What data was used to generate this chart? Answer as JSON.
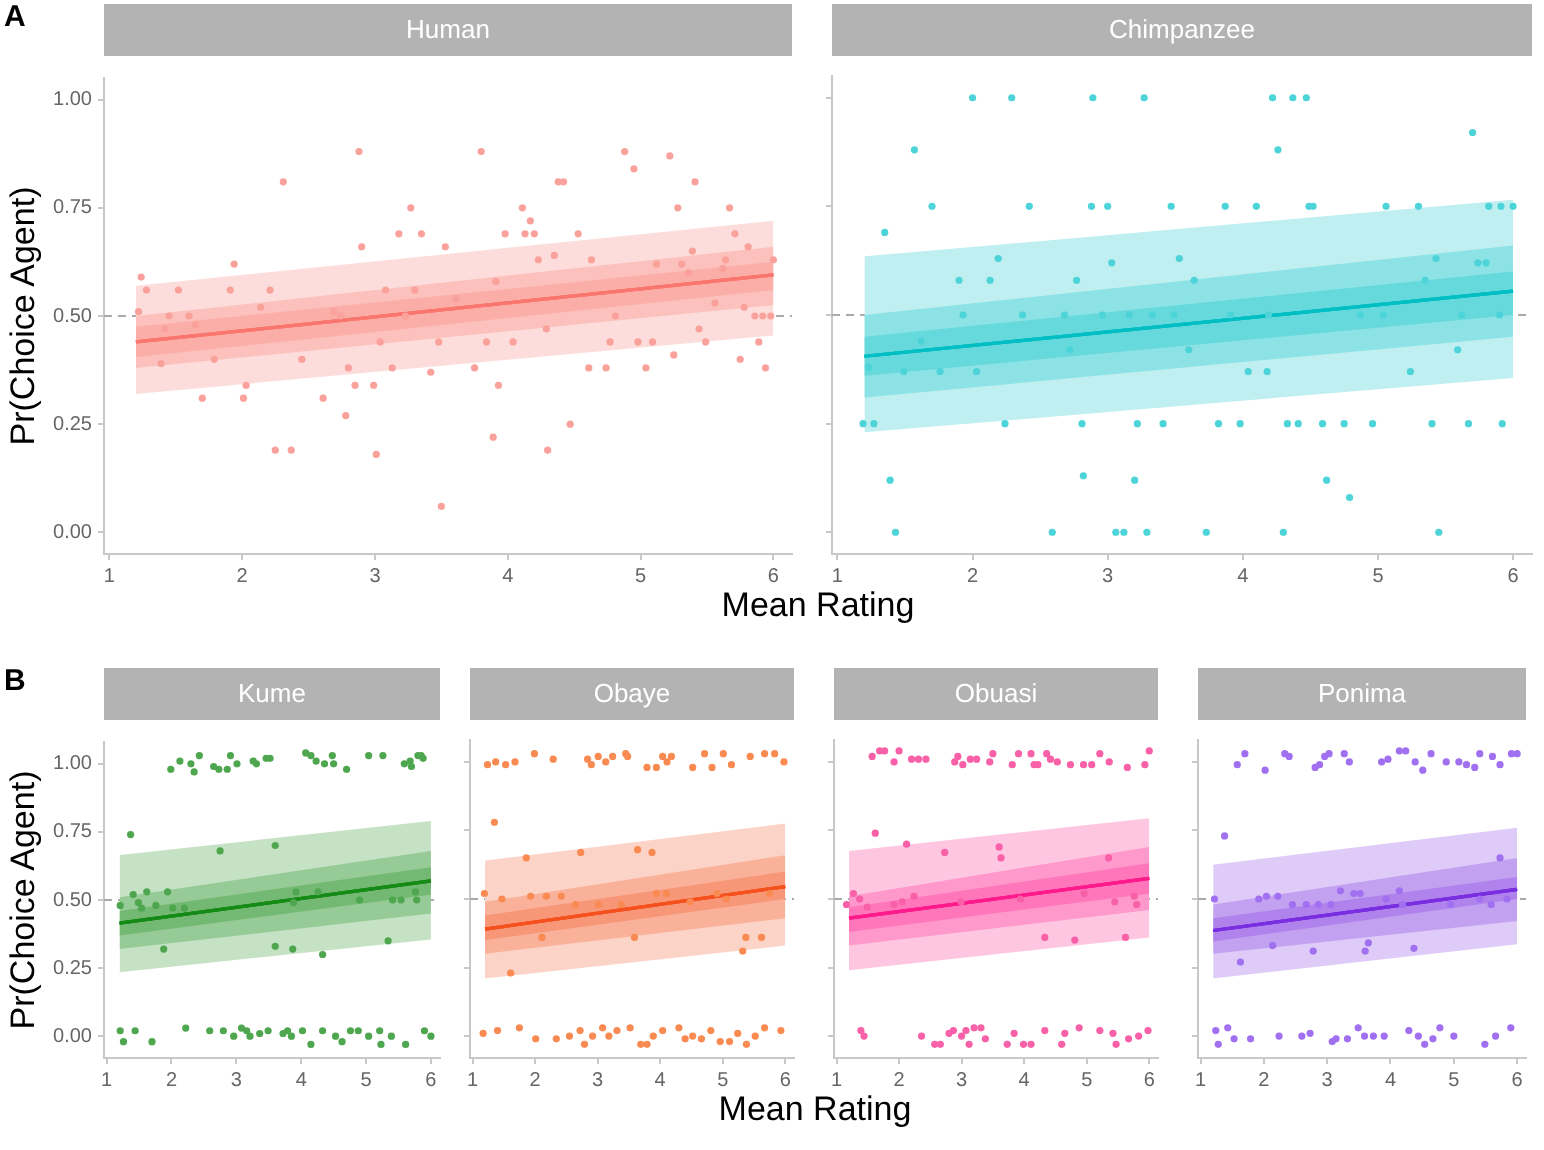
{
  "chart_data": [
    {
      "type": "scatter",
      "title": "Human",
      "xlabel": "Mean Rating",
      "ylabel": "Pr(Choice Agent)",
      "annotations": [
        "A"
      ],
      "xlim": [
        0.96,
        6.14
      ],
      "ylim": [
        -0.05,
        1.05
      ],
      "xticks": [
        1,
        2,
        3,
        4,
        5,
        6
      ],
      "yticks": [
        {
          "value": 0,
          "label": "0.00"
        },
        {
          "value": 0.25,
          "label": "0.25"
        },
        {
          "value": 0.5,
          "label": "0.50"
        },
        {
          "value": 0.75,
          "label": "0.75"
        },
        {
          "value": 1,
          "label": "1.00"
        }
      ],
      "grid": false,
      "ref_lines": [
        {
          "axis": "y",
          "value": 0.5,
          "color": "#aaaaaa",
          "line_style": "dashed"
        }
      ],
      "series": [
        {
          "type": "scatter",
          "color": "#f9a19a",
          "x": [
            1.22,
            1.24,
            1.28,
            1.39,
            1.42,
            1.45,
            1.52,
            1.6,
            1.65,
            1.7,
            1.79,
            1.91,
            1.94,
            2.01,
            2.03,
            2.14,
            2.21,
            2.25,
            2.31,
            2.37,
            2.45,
            2.61,
            2.69,
            2.74,
            2.78,
            2.8,
            2.85,
            2.88,
            2.9,
            2.99,
            3.01,
            3.04,
            3.08,
            3.13,
            3.18,
            3.23,
            3.27,
            3.3,
            3.35,
            3.42,
            3.48,
            3.5,
            3.53,
            3.61,
            3.75,
            3.8,
            3.84,
            3.89,
            3.91,
            3.93,
            3.98,
            4.04,
            4.11,
            4.13,
            4.17,
            4.2,
            4.23,
            4.29,
            4.3,
            4.35,
            4.38,
            4.42,
            4.47,
            4.53,
            4.61,
            4.63,
            4.74,
            4.77,
            4.81,
            4.88,
            4.95,
            4.98,
            5.04,
            5.09,
            5.12,
            5.22,
            5.25,
            5.28,
            5.31,
            5.36,
            5.39,
            5.41,
            5.44,
            5.49,
            5.56,
            5.62,
            5.64,
            5.67,
            5.71,
            5.75,
            5.78,
            5.81,
            5.86,
            5.89,
            5.92,
            5.94,
            5.98,
            6.0
          ],
          "values": [
            0.51,
            0.59,
            0.56,
            0.39,
            0.47,
            0.5,
            0.56,
            0.5,
            0.48,
            0.31,
            0.4,
            0.56,
            0.62,
            0.31,
            0.34,
            0.52,
            0.56,
            0.19,
            0.81,
            0.19,
            0.4,
            0.31,
            0.51,
            0.5,
            0.27,
            0.38,
            0.34,
            0.88,
            0.66,
            0.34,
            0.18,
            0.44,
            0.56,
            0.38,
            0.69,
            0.5,
            0.75,
            0.56,
            0.69,
            0.37,
            0.44,
            0.06,
            0.66,
            0.54,
            0.38,
            0.88,
            0.44,
            0.22,
            0.58,
            0.34,
            0.69,
            0.44,
            0.75,
            0.69,
            0.72,
            0.69,
            0.63,
            0.47,
            0.19,
            0.64,
            0.81,
            0.81,
            0.25,
            0.69,
            0.38,
            0.63,
            0.38,
            0.44,
            0.5,
            0.88,
            0.84,
            0.44,
            0.38,
            0.44,
            0.62,
            0.87,
            0.41,
            0.75,
            0.62,
            0.6,
            0.65,
            0.81,
            0.47,
            0.44,
            0.53,
            0.61,
            0.63,
            0.75,
            0.69,
            0.4,
            0.52,
            0.66,
            0.5,
            0.44,
            0.5,
            0.38,
            0.5,
            0.63
          ]
        },
        {
          "type": "line",
          "color": "#f8766d",
          "x": [
            1.2,
            6
          ],
          "values": [
            0.44,
            0.595
          ],
          "lower": [
            0.32,
            0.455
          ],
          "upper": [
            0.57,
            0.72
          ]
        },
        {
          "type": "line",
          "color": "#f8766d",
          "x": [
            1.2,
            6
          ],
          "values": [
            0.44,
            0.595
          ],
          "lower": [
            0.38,
            0.525
          ],
          "upper": [
            0.5,
            0.66
          ]
        },
        {
          "type": "line",
          "color": "#f8766d",
          "x": [
            1.2,
            6
          ],
          "values": [
            0.44,
            0.595
          ],
          "lower": [
            0.405,
            0.56
          ],
          "upper": [
            0.475,
            0.625
          ]
        }
      ]
    },
    {
      "type": "scatter",
      "title": "Chimpanzee",
      "xlim": [
        0.96,
        6.14
      ],
      "ylim": [
        -0.05,
        1.05
      ],
      "xticks": [
        1,
        2,
        3,
        4,
        5,
        6
      ],
      "yticks": [
        0,
        0.25,
        0.5,
        0.75,
        1
      ],
      "tick_labels": "x",
      "grid": false,
      "ref_lines": [
        {
          "axis": "y",
          "value": 0.5,
          "color": "#aaaaaa",
          "line_style": "dashed"
        }
      ],
      "series": [
        {
          "type": "scatter",
          "color": "#4dd4d8",
          "x": [
            1.19,
            1.27,
            1.23,
            1.35,
            1.39,
            1.43,
            1.49,
            1.57,
            1.62,
            1.7,
            1.76,
            1.9,
            1.93,
            2.0,
            2.03,
            2.13,
            2.19,
            2.24,
            2.29,
            2.37,
            2.42,
            2.59,
            2.68,
            2.72,
            2.77,
            2.81,
            2.82,
            2.88,
            2.89,
            2.96,
            3.0,
            3.03,
            3.06,
            3.12,
            3.16,
            3.2,
            3.22,
            3.27,
            3.29,
            3.33,
            3.41,
            3.47,
            3.49,
            3.53,
            3.6,
            3.64,
            3.73,
            3.82,
            3.87,
            3.91,
            3.98,
            4.04,
            4.1,
            4.18,
            4.19,
            4.22,
            4.26,
            4.3,
            4.33,
            4.37,
            4.41,
            4.47,
            4.49,
            4.52,
            4.59,
            4.62,
            4.75,
            4.79,
            4.87,
            4.96,
            5.04,
            5.06,
            5.24,
            5.3,
            5.35,
            5.4,
            5.43,
            5.45,
            5.59,
            5.62,
            5.67,
            5.7,
            5.74,
            5.8,
            5.82,
            5.9,
            5.91,
            5.92,
            6.0
          ],
          "values": [
            0.25,
            0.25,
            0.38,
            0.69,
            0.12,
            0,
            0.37,
            0.88,
            0.44,
            0.75,
            0.37,
            0.58,
            0.5,
            1,
            0.37,
            0.58,
            0.63,
            0.25,
            1,
            0.5,
            0.75,
            0,
            0.5,
            0.42,
            0.58,
            0.25,
            0.13,
            0.75,
            1,
            0.5,
            0.75,
            0.62,
            0,
            0,
            0.5,
            0.12,
            0.25,
            1,
            0,
            0.5,
            0.25,
            0.75,
            0.5,
            0.63,
            0.42,
            0.58,
            0,
            0.25,
            0.75,
            0.5,
            0.25,
            0.37,
            0.75,
            0.37,
            0.5,
            1,
            0.88,
            0,
            0.25,
            1,
            0.25,
            1,
            0.75,
            0.75,
            0.25,
            0.12,
            0.25,
            0.08,
            0.5,
            0.25,
            0.5,
            0.75,
            0.37,
            0.75,
            0.58,
            0.25,
            0.63,
            0,
            0.42,
            0.5,
            0.25,
            0.92,
            0.62,
            0.62,
            0.75,
            0.5,
            0.75,
            0.25,
            0.75
          ]
        },
        {
          "type": "line",
          "color": "#00bfc4",
          "x": [
            1.2,
            6
          ],
          "values": [
            0.405,
            0.555
          ],
          "lower": [
            0.23,
            0.355
          ],
          "upper": [
            0.635,
            0.765
          ]
        },
        {
          "type": "line",
          "color": "#00bfc4",
          "x": [
            1.2,
            6
          ],
          "values": [
            0.405,
            0.555
          ],
          "lower": [
            0.31,
            0.45
          ],
          "upper": [
            0.5,
            0.66
          ]
        },
        {
          "type": "line",
          "color": "#00bfc4",
          "x": [
            1.2,
            6
          ],
          "values": [
            0.405,
            0.555
          ],
          "lower": [
            0.36,
            0.5
          ],
          "upper": [
            0.45,
            0.6
          ]
        }
      ]
    },
    {
      "type": "scatter",
      "title": "Kume",
      "ylabel": "Pr(Choice Agent)",
      "annotations": [
        "B"
      ],
      "xlim": [
        0.96,
        6.14
      ],
      "ylim": [
        -0.08,
        1.08
      ],
      "xticks": [
        1,
        2,
        3,
        4,
        5,
        6
      ],
      "yticks": [
        {
          "value": 0,
          "label": "0.00"
        },
        {
          "value": 0.25,
          "label": "0.25"
        },
        {
          "value": 0.5,
          "label": "0.50"
        },
        {
          "value": 0.75,
          "label": "0.75"
        },
        {
          "value": 1,
          "label": "1.00"
        }
      ],
      "grid": false,
      "ref_lines": [
        {
          "axis": "y",
          "value": 0.5,
          "color": "#aaaaaa",
          "line_style": "dashed"
        }
      ],
      "series": [
        {
          "type": "scatter",
          "color": "#4ea64e",
          "x": [
            1.99,
            2.13,
            2.3,
            2.35,
            2.43,
            2.65,
            2.73,
            2.86,
            2.91,
            3.01,
            3.26,
            3.31,
            3.46,
            3.52,
            4.07,
            4.15,
            4.23,
            4.36,
            4.48,
            4.5,
            4.7,
            5.04,
            5.26,
            5.59,
            5.68,
            5.7,
            5.8,
            5.85,
            5.88,
            1.21,
            1.37,
            1.41,
            1.49,
            1.54,
            1.62,
            1.76,
            1.88,
            1.94,
            2.02,
            2.2,
            2.75,
            3.6,
            3.6,
            3.87,
            3.92,
            3.88,
            4.26,
            4.33,
            4.9,
            5.34,
            5.41,
            5.54,
            5.76,
            5.78,
            1.21,
            1.26,
            1.44,
            1.7,
            2.22,
            2.59,
            2.8,
            2.96,
            3.08,
            3.16,
            3.21,
            3.36,
            3.49,
            3.72,
            3.79,
            3.85,
            4.02,
            4.15,
            4.33,
            4.53,
            4.63,
            4.76,
            4.88,
            5.04,
            5.21,
            5.23,
            5.39,
            5.61,
            5.9,
            6
          ],
          "values": [
            0.98,
            1.01,
            1,
            0.97,
            1.03,
            0.99,
            0.98,
            0.98,
            1.03,
            1,
            1.01,
            1,
            1.02,
            1.02,
            1.04,
            1.03,
            1.01,
            1,
            1.03,
            1,
            0.98,
            1.03,
            1.03,
            1,
            1.01,
            0.99,
            1.03,
            1.03,
            1.02,
            0.48,
            0.74,
            0.52,
            0.49,
            0.47,
            0.53,
            0.48,
            0.32,
            0.53,
            0.47,
            0.47,
            0.68,
            0.7,
            0.33,
            0.32,
            0.53,
            0.49,
            0.53,
            0.3,
            0.5,
            0.35,
            0.5,
            0.5,
            0.53,
            0.5,
            0.02,
            -0.02,
            0.02,
            -0.02,
            0.03,
            0.02,
            0.02,
            0,
            0.03,
            0.02,
            0,
            0.01,
            0.02,
            0.01,
            0.02,
            0,
            0.02,
            -0.03,
            0.02,
            0,
            -0.02,
            0.02,
            0.02,
            0,
            0.02,
            -0.03,
            0,
            -0.03,
            0.02,
            0
          ]
        },
        {
          "type": "line",
          "color": "#168a16",
          "x": [
            1.2,
            6
          ],
          "values": [
            0.415,
            0.57
          ],
          "lower": [
            0.235,
            0.355
          ],
          "upper": [
            0.665,
            0.79
          ]
        },
        {
          "type": "line",
          "color": "#168a16",
          "x": [
            1.2,
            6
          ],
          "values": [
            0.415,
            0.57
          ],
          "lower": [
            0.32,
            0.45
          ],
          "upper": [
            0.51,
            0.68
          ]
        },
        {
          "type": "line",
          "color": "#168a16",
          "x": [
            1.2,
            6
          ],
          "values": [
            0.415,
            0.57
          ],
          "lower": [
            0.37,
            0.52
          ],
          "upper": [
            0.46,
            0.62
          ]
        }
      ]
    },
    {
      "type": "scatter",
      "title": "Obaye",
      "xlabel": "Mean Rating",
      "xlim": [
        0.96,
        6.14
      ],
      "ylim": [
        -0.08,
        1.08
      ],
      "xticks": [
        1,
        2,
        3,
        4,
        5,
        6
      ],
      "yticks": [
        0,
        0.25,
        0.5,
        0.75,
        1
      ],
      "tick_labels": "x",
      "grid": false,
      "ref_lines": [
        {
          "axis": "y",
          "value": 0.5,
          "color": "#aaaaaa",
          "line_style": "dashed"
        }
      ],
      "series": [
        {
          "type": "scatter",
          "color": "#f88a52",
          "x": [
            1.24,
            1.37,
            1.53,
            1.68,
            1.99,
            2.29,
            2.84,
            2.9,
            3.01,
            3.13,
            3.24,
            3.45,
            3.48,
            3.79,
            3.94,
            4.04,
            4.11,
            4.18,
            4.52,
            4.71,
            4.83,
            5.01,
            5.14,
            5.44,
            5.67,
            5.83,
            5.98,
            1.19,
            1.35,
            1.47,
            1.61,
            1.86,
            1.93,
            2.11,
            2.18,
            2.42,
            2.65,
            2.73,
            3.01,
            3.38,
            3.59,
            3.64,
            3.87,
            3.94,
            4.1,
            4.48,
            4.91,
            5.06,
            5.32,
            5.37,
            5.62,
            5.75,
            1.17,
            1.4,
            1.75,
            2.01,
            2.34,
            2.55,
            2.72,
            2.79,
            2.92,
            3.08,
            3.18,
            3.31,
            3.52,
            3.69,
            3.79,
            3.89,
            4.04,
            4.3,
            4.4,
            4.52,
            4.66,
            4.81,
            4.96,
            5.11,
            5.24,
            5.38,
            5.52,
            5.67,
            5.93
          ],
          "values": [
            0.99,
            1,
            0.99,
            1,
            1.03,
            1.01,
            1.01,
            0.99,
            1.02,
            1,
            1.02,
            1.03,
            1.02,
            0.98,
            0.98,
            1.02,
            1,
            1.02,
            0.98,
            1.03,
            0.98,
            1.03,
            0.99,
            1.02,
            1.03,
            1.03,
            1,
            0.52,
            0.78,
            0.5,
            0.23,
            0.65,
            0.51,
            0.36,
            0.51,
            0.51,
            0.48,
            0.67,
            0.48,
            0.48,
            0.36,
            0.68,
            0.67,
            0.52,
            0.52,
            0.49,
            0.52,
            0.5,
            0.31,
            0.36,
            0.36,
            0.52,
            0.01,
            0.02,
            0.03,
            -0.01,
            -0.01,
            0,
            0.02,
            -0.03,
            0,
            0.03,
            0,
            0.02,
            0.03,
            -0.03,
            -0.03,
            0,
            0.02,
            0.03,
            -0.01,
            0,
            -0.01,
            0.02,
            -0.02,
            -0.02,
            0.01,
            -0.03,
            0,
            0.03,
            0.02
          ]
        },
        {
          "type": "line",
          "color": "#f4511e",
          "x": [
            1.2,
            6
          ],
          "values": [
            0.39,
            0.545
          ],
          "lower": [
            0.21,
            0.33
          ],
          "upper": [
            0.64,
            0.775
          ]
        },
        {
          "type": "line",
          "color": "#f4511e",
          "x": [
            1.2,
            6
          ],
          "values": [
            0.39,
            0.545
          ],
          "lower": [
            0.3,
            0.43
          ],
          "upper": [
            0.49,
            0.66
          ]
        },
        {
          "type": "line",
          "color": "#f4511e",
          "x": [
            1.2,
            6
          ],
          "values": [
            0.39,
            0.545
          ],
          "lower": [
            0.35,
            0.5
          ],
          "upper": [
            0.44,
            0.6
          ]
        }
      ]
    },
    {
      "type": "scatter",
      "title": "Obuasi",
      "xlim": [
        0.96,
        6.14
      ],
      "ylim": [
        -0.08,
        1.08
      ],
      "xticks": [
        1,
        2,
        3,
        4,
        5,
        6
      ],
      "yticks": [
        0,
        0.25,
        0.5,
        0.75,
        1
      ],
      "tick_labels": "x",
      "grid": false,
      "ref_lines": [
        {
          "axis": "y",
          "value": 0.5,
          "color": "#aaaaaa",
          "line_style": "dashed"
        }
      ],
      "series": [
        {
          "type": "scatter",
          "color": "#f860a8",
          "x": [
            1.57,
            1.69,
            1.77,
            1.92,
            2,
            2.2,
            2.31,
            2.43,
            2.89,
            2.94,
            3.02,
            3.14,
            3.24,
            3.45,
            3.5,
            3.81,
            3.91,
            4.11,
            4.16,
            4.22,
            4.36,
            4.42,
            4.53,
            4.74,
            4.95,
            5.08,
            5.21,
            5.36,
            5.65,
            5.93,
            6,
            1.16,
            1.27,
            1.37,
            1.49,
            1.62,
            1.92,
            2.05,
            2.12,
            2.24,
            2.73,
            2.99,
            3.6,
            3.63,
            3.94,
            4.33,
            4.81,
            4.96,
            5.35,
            5.45,
            5.62,
            5.76,
            5.8,
            1.39,
            1.44,
            2.36,
            2.57,
            2.66,
            2.8,
            2.87,
            3,
            3.07,
            3.12,
            3.2,
            3.31,
            3.38,
            3.73,
            3.84,
            3.99,
            4.11,
            4.33,
            4.6,
            4.65,
            4.88,
            5.21,
            5.42,
            5.47,
            5.67,
            5.83,
            5.98
          ],
          "values": [
            1.02,
            1.04,
            1.04,
            1,
            1.04,
            1.01,
            1.01,
            1.01,
            1,
            1.02,
            0.99,
            1.01,
            1.01,
            1,
            1.03,
            0.99,
            1.03,
            1.03,
            0.99,
            0.99,
            1.03,
            1.01,
            1,
            0.99,
            0.99,
            0.99,
            1.03,
            1,
            0.98,
            0.99,
            1.04,
            0.48,
            0.52,
            0.5,
            0.47,
            0.74,
            0.48,
            0.49,
            0.7,
            0.51,
            0.67,
            0.49,
            0.69,
            0.65,
            0.5,
            0.36,
            0.35,
            0.52,
            0.65,
            0.49,
            0.36,
            0.51,
            0.48,
            0.02,
            0,
            0,
            -0.03,
            -0.03,
            0.01,
            0.02,
            0,
            0.02,
            -0.03,
            0.03,
            0.03,
            -0.01,
            -0.03,
            0.01,
            -0.03,
            -0.03,
            0.02,
            -0.03,
            0.01,
            0.03,
            0.02,
            0.01,
            -0.03,
            -0.01,
            0,
            0.02
          ]
        },
        {
          "type": "line",
          "color": "#ff1a8c",
          "x": [
            1.2,
            6
          ],
          "values": [
            0.43,
            0.575
          ],
          "lower": [
            0.24,
            0.36
          ],
          "upper": [
            0.675,
            0.795
          ]
        },
        {
          "type": "line",
          "color": "#ff1a8c",
          "x": [
            1.2,
            6
          ],
          "values": [
            0.43,
            0.575
          ],
          "lower": [
            0.33,
            0.46
          ],
          "upper": [
            0.51,
            0.69
          ]
        },
        {
          "type": "line",
          "color": "#ff1a8c",
          "x": [
            1.2,
            6
          ],
          "values": [
            0.43,
            0.575
          ],
          "lower": [
            0.38,
            0.52
          ],
          "upper": [
            0.47,
            0.63
          ]
        }
      ]
    },
    {
      "type": "scatter",
      "title": "Ponima",
      "xlim": [
        0.96,
        6.14
      ],
      "ylim": [
        -0.08,
        1.08
      ],
      "xticks": [
        1,
        2,
        3,
        4,
        5,
        6
      ],
      "yticks": [
        0,
        0.25,
        0.5,
        0.75,
        1
      ],
      "tick_labels": "x",
      "grid": false,
      "ref_lines": [
        {
          "axis": "y",
          "value": 0.5,
          "color": "#aaaaaa",
          "line_style": "dashed"
        }
      ],
      "series": [
        {
          "type": "scatter",
          "color": "#a070f0",
          "x": [
            1.58,
            1.7,
            2.02,
            2.33,
            2.4,
            2.81,
            2.88,
            2.96,
            3.03,
            3.27,
            3.35,
            3.86,
            3.96,
            4.14,
            4.24,
            4.39,
            4.51,
            4.64,
            4.88,
            5.08,
            5.2,
            5.33,
            5.41,
            5.61,
            5.73,
            5.91,
            6,
            1.22,
            1.38,
            1.63,
            1.92,
            2.04,
            2.14,
            2.22,
            2.45,
            2.67,
            2.78,
            2.86,
            3.06,
            3.21,
            3.42,
            3.52,
            3.6,
            3.65,
            3.93,
            4.14,
            4.19,
            4.37,
            4.95,
            5.41,
            5.59,
            5.73,
            5.84,
            1.24,
            1.28,
            1.43,
            1.53,
            1.79,
            2.24,
            2.6,
            2.73,
            3.08,
            3.14,
            3.32,
            3.49,
            3.59,
            3.73,
            3.9,
            4.29,
            4.44,
            4.54,
            4.67,
            4.78,
            5,
            5.49,
            5.66,
            5.9
          ],
          "values": [
            0.99,
            1.03,
            0.97,
            1.03,
            1.02,
            0.98,
            0.99,
            1.02,
            1.03,
            1.03,
            1,
            1,
            1.01,
            1.04,
            1.04,
            1,
            0.97,
            1.03,
            1,
            1,
            0.99,
            0.98,
            1.03,
            1.02,
            0.99,
            1.03,
            1.03,
            0.5,
            0.73,
            0.27,
            0.5,
            0.51,
            0.33,
            0.51,
            0.48,
            0.48,
            0.31,
            0.48,
            0.48,
            0.53,
            0.52,
            0.52,
            0.31,
            0.34,
            0.5,
            0.53,
            0.48,
            0.32,
            0.48,
            0.5,
            0.48,
            0.65,
            0.5,
            0.02,
            -0.03,
            0.03,
            -0.01,
            -0.01,
            0,
            0,
            0.01,
            -0.02,
            -0.01,
            -0.01,
            0.03,
            0,
            0,
            0,
            0.02,
            0,
            -0.03,
            -0.01,
            0.03,
            0,
            -0.03,
            0,
            0.03
          ]
        },
        {
          "type": "line",
          "color": "#7a2ee0",
          "x": [
            1.2,
            6
          ],
          "values": [
            0.385,
            0.535
          ],
          "lower": [
            0.21,
            0.335
          ],
          "upper": [
            0.625,
            0.76
          ]
        },
        {
          "type": "line",
          "color": "#7a2ee0",
          "x": [
            1.2,
            6
          ],
          "values": [
            0.385,
            0.535
          ],
          "lower": [
            0.3,
            0.42
          ],
          "upper": [
            0.48,
            0.65
          ]
        },
        {
          "type": "line",
          "color": "#7a2ee0",
          "x": [
            1.2,
            6
          ],
          "values": [
            0.385,
            0.535
          ],
          "lower": [
            0.345,
            0.5
          ],
          "upper": [
            0.43,
            0.58
          ]
        }
      ]
    }
  ]
}
